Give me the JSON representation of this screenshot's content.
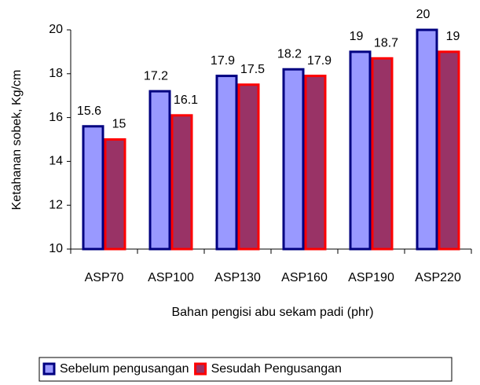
{
  "chart_data": {
    "type": "bar",
    "categories": [
      "ASP70",
      "ASP100",
      "ASP130",
      "ASP160",
      "ASP190",
      "ASP220"
    ],
    "series": [
      {
        "name": "Sebelum pengusangan",
        "color": "#9999ff",
        "edge": "#000080",
        "values": [
          15.6,
          17.2,
          17.9,
          18.2,
          19,
          20
        ]
      },
      {
        "name": "Sesudah Pengusangan",
        "color": "#993366",
        "edge": "#ff0000",
        "values": [
          15,
          16.1,
          17.5,
          17.9,
          18.7,
          19
        ]
      }
    ],
    "y_label": "Ketahanan sobek, Kg/cm",
    "x_label": "Bahan pengisi abu sekam padi (phr)",
    "ylim": [
      10,
      20
    ],
    "yticks": [
      10,
      12,
      14,
      16,
      18,
      20
    ],
    "grid": false,
    "legend": "bottom"
  }
}
